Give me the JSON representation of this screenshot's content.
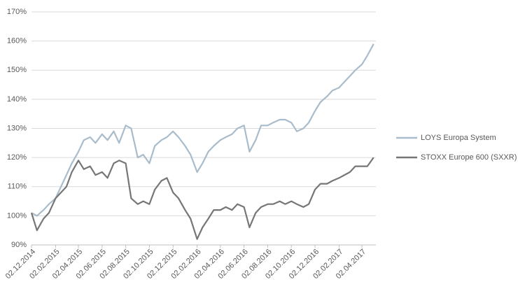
{
  "chart_data": {
    "type": "line",
    "x": [
      "02.12.2014",
      "16.12.2014",
      "02.01.2015",
      "16.01.2015",
      "02.02.2015",
      "16.02.2015",
      "02.03.2015",
      "16.03.2015",
      "02.04.2015",
      "16.04.2015",
      "02.05.2015",
      "16.05.2015",
      "02.06.2015",
      "16.06.2015",
      "02.07.2015",
      "16.07.2015",
      "02.08.2015",
      "16.08.2015",
      "02.09.2015",
      "16.09.2015",
      "02.10.2015",
      "16.10.2015",
      "02.11.2015",
      "16.11.2015",
      "02.12.2015",
      "16.12.2015",
      "02.01.2016",
      "16.01.2016",
      "02.02.2016",
      "16.02.2016",
      "02.03.2016",
      "16.03.2016",
      "02.04.2016",
      "16.04.2016",
      "02.05.2016",
      "16.05.2016",
      "02.06.2016",
      "16.06.2016",
      "02.07.2016",
      "16.07.2016",
      "02.08.2016",
      "16.08.2016",
      "02.09.2016",
      "16.09.2016",
      "02.10.2016",
      "16.10.2016",
      "02.11.2016",
      "16.11.2016",
      "02.12.2016",
      "16.12.2016",
      "02.01.2017",
      "16.01.2017",
      "02.02.2017",
      "16.02.2017",
      "02.03.2017",
      "16.03.2017",
      "02.04.2017",
      "16.04.2017",
      "02.05.2017"
    ],
    "series": [
      {
        "name": "LOYS Europa System",
        "color": "#a9bccb",
        "values": [
          101,
          100,
          102,
          104,
          106,
          110,
          114,
          118,
          122,
          126,
          127,
          125,
          128,
          126,
          129,
          125,
          131,
          130,
          120,
          121,
          118,
          124,
          126,
          127,
          129,
          127,
          124,
          121,
          115,
          118,
          122,
          124,
          126,
          127,
          128,
          130,
          131,
          122,
          126,
          131,
          131,
          132,
          133,
          133,
          132,
          129,
          130,
          132,
          136,
          139,
          141,
          143,
          144,
          146,
          148,
          150,
          152,
          155,
          159
        ]
      },
      {
        "name": "STOXX Europe 600 (SXXR)",
        "color": "#767676",
        "values": [
          101,
          95,
          99,
          101,
          106,
          108,
          110,
          115,
          119,
          116,
          117,
          114,
          115,
          113,
          118,
          119,
          118,
          106,
          104,
          105,
          104,
          109,
          112,
          113,
          108,
          106,
          102,
          99,
          92,
          96,
          99,
          102,
          102,
          103,
          102,
          104,
          103,
          96,
          101,
          103,
          104,
          104,
          105,
          104,
          105,
          104,
          103,
          104,
          109,
          111,
          111,
          112,
          113,
          114,
          115,
          117,
          117,
          117,
          120
        ]
      }
    ],
    "xlim": [
      "02.12.2014",
      "08.05.2017"
    ],
    "xticks": [
      "02.12.2014",
      "02.02.2015",
      "02.04.2015",
      "02.06.2015",
      "02.08.2015",
      "02.10.2015",
      "02.12.2015",
      "02.02.2016",
      "02.04.2016",
      "02.06.2016",
      "02.08.2016",
      "02.10.2016",
      "02.12.2016",
      "02.02.2017",
      "02.04.2017"
    ],
    "ylim": [
      90,
      170
    ],
    "yticks": [
      {
        "value": 90,
        "label": "90%"
      },
      {
        "value": 100,
        "label": "100%"
      },
      {
        "value": 110,
        "label": "110%"
      },
      {
        "value": 120,
        "label": "120%"
      },
      {
        "value": 130,
        "label": "130%"
      },
      {
        "value": 140,
        "label": "140%"
      },
      {
        "value": 150,
        "label": "150%"
      },
      {
        "value": 160,
        "label": "160%"
      },
      {
        "value": 170,
        "label": "170%"
      }
    ],
    "grid": true
  }
}
